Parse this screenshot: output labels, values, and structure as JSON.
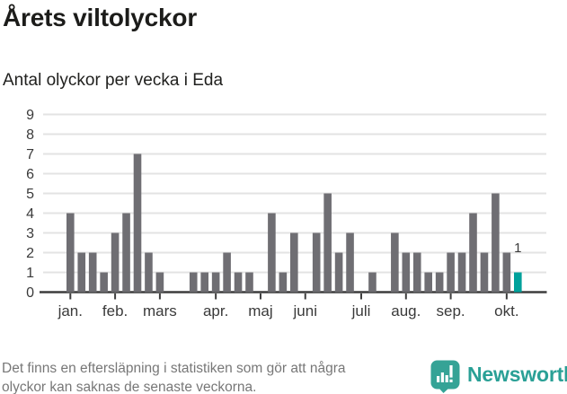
{
  "title": "Årets viltolyckor",
  "subtitle": "Antal olyckor per vecka i Eda",
  "footnote": {
    "line1": "Det finns en eftersläpning i statistiken som gör att några",
    "line2": "olyckor kan saknas de senaste veckorna."
  },
  "logo": {
    "name": "Newsworthy",
    "icon": "bar-chart-speech-bubble-icon",
    "icon_color": "#35a396",
    "text_color": "#2aa096"
  },
  "colors": {
    "bar": "#6f6e73",
    "highlight": "#00a19b",
    "grid": "#e3e3e3",
    "axis": "#3d3d3d",
    "tick_label": "#3a3a3a",
    "value_label": "#3a3a3a"
  },
  "chart_data": {
    "type": "bar",
    "title": "Årets viltolyckor",
    "subtitle": "Antal olyckor per vecka i Eda",
    "x_unit": "vecka",
    "ylabel": "",
    "ylim": [
      0,
      9
    ],
    "yticks": [
      0,
      1,
      2,
      3,
      4,
      5,
      6,
      7,
      8,
      9
    ],
    "grid": true,
    "legend": "none",
    "values": [
      4,
      2,
      2,
      1,
      3,
      4,
      7,
      2,
      1,
      0,
      0,
      1,
      1,
      1,
      2,
      1,
      1,
      0,
      4,
      1,
      3,
      0,
      3,
      5,
      2,
      3,
      0,
      1,
      0,
      3,
      2,
      2,
      1,
      1,
      2,
      2,
      4,
      2,
      5,
      2,
      1
    ],
    "highlight_index": 40,
    "highlight_label": "1",
    "x_axis_months": [
      {
        "label": "jan.",
        "week_index": 0
      },
      {
        "label": "feb.",
        "week_index": 4
      },
      {
        "label": "mars",
        "week_index": 8
      },
      {
        "label": "apr.",
        "week_index": 13
      },
      {
        "label": "maj",
        "week_index": 17
      },
      {
        "label": "juni",
        "week_index": 21
      },
      {
        "label": "juli",
        "week_index": 26
      },
      {
        "label": "aug.",
        "week_index": 30
      },
      {
        "label": "sep.",
        "week_index": 34
      },
      {
        "label": "okt.",
        "week_index": 39
      }
    ]
  }
}
